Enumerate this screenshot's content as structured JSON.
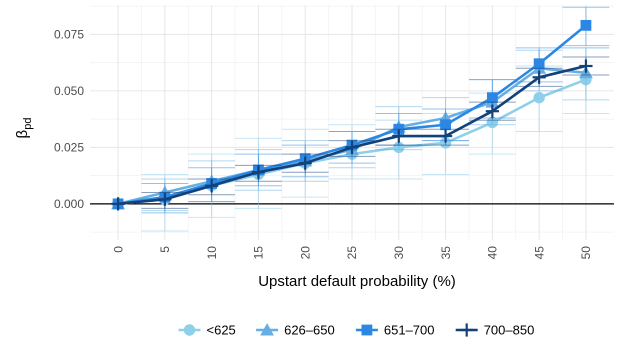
{
  "chart_data": {
    "type": "line",
    "xlabel": "Upstart default probability (%)",
    "ylabel": "β",
    "ylabel_subscript": "pd",
    "x": [
      0,
      5,
      10,
      15,
      20,
      25,
      30,
      35,
      40,
      45,
      50
    ],
    "xlim": [
      -3,
      53
    ],
    "ylim": [
      -0.016,
      0.088
    ],
    "yticks": [
      0.0,
      0.025,
      0.05,
      0.075
    ],
    "ytick_labels": [
      "0.000",
      "0.025",
      "0.050",
      "0.075"
    ],
    "xtick_labels": [
      "0",
      "5",
      "10",
      "15",
      "20",
      "25",
      "30",
      "35",
      "40",
      "45",
      "50"
    ],
    "grid": true,
    "hline": 0,
    "legend_position": "bottom",
    "series": [
      {
        "name": "<625",
        "marker": "circle",
        "color": "#8ecfea",
        "values": [
          0.0,
          0.002,
          0.008,
          0.013,
          0.018,
          0.022,
          0.025,
          0.027,
          0.036,
          0.047,
          0.055
        ],
        "err_low": [
          0.0,
          -0.012,
          -0.006,
          -0.002,
          0.003,
          0.011,
          0.011,
          0.013,
          0.022,
          0.032,
          0.04
        ],
        "err_high": [
          0.0,
          0.013,
          0.022,
          0.029,
          0.033,
          0.035,
          0.037,
          0.04,
          0.049,
          0.061,
          0.069
        ]
      },
      {
        "name": "626–650",
        "marker": "triangle",
        "color": "#67afe3",
        "values": [
          0.0,
          0.005,
          0.01,
          0.015,
          0.019,
          0.024,
          0.034,
          0.038,
          0.045,
          0.06,
          0.058
        ],
        "err_low": [
          0.0,
          -0.003,
          0.001,
          0.006,
          0.01,
          0.016,
          0.024,
          0.028,
          0.035,
          0.05,
          0.046
        ],
        "err_high": [
          0.0,
          0.011,
          0.019,
          0.024,
          0.028,
          0.032,
          0.043,
          0.047,
          0.055,
          0.068,
          0.069
        ]
      },
      {
        "name": "651–700",
        "marker": "square",
        "color": "#2b87e3",
        "values": [
          0.0,
          0.003,
          0.009,
          0.015,
          0.02,
          0.026,
          0.033,
          0.035,
          0.047,
          0.062,
          0.079
        ],
        "err_low": [
          0.0,
          -0.004,
          0.001,
          0.008,
          0.012,
          0.018,
          0.026,
          0.028,
          0.038,
          0.054,
          0.07
        ],
        "err_high": [
          0.0,
          0.009,
          0.016,
          0.022,
          0.026,
          0.032,
          0.04,
          0.042,
          0.055,
          0.069,
          0.087
        ]
      },
      {
        "name": "700–850",
        "marker": "cross",
        "color": "#13427a",
        "values": [
          0.0,
          0.002,
          0.008,
          0.014,
          0.018,
          0.025,
          0.03,
          0.03,
          0.041,
          0.056,
          0.061
        ],
        "err_low": [
          0.0,
          -0.002,
          0.004,
          0.01,
          0.014,
          0.021,
          0.026,
          0.026,
          0.037,
          0.052,
          0.057
        ],
        "err_high": [
          0.0,
          0.005,
          0.011,
          0.017,
          0.022,
          0.028,
          0.033,
          0.033,
          0.045,
          0.06,
          0.065
        ]
      }
    ]
  }
}
